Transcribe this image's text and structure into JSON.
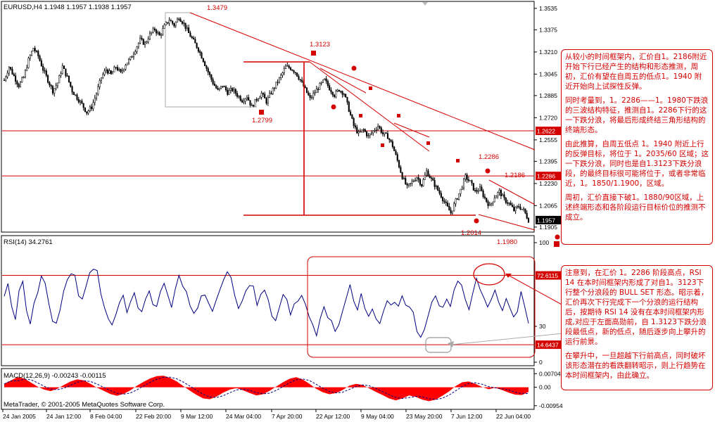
{
  "header": {
    "main": "EURUSD,H4  1.1948 1.1957 1.1938 1.1957",
    "rsi": "RSI(14) 34.2761",
    "macd": "MACD(12,26,9) -0.00243 -0.00115"
  },
  "copyright": "MetaTrader, © 2001-2005 MetaQuotes Software Corp.",
  "chart_data": [
    {
      "type": "candlestick",
      "symbol": "EURUSD",
      "timeframe": "H4",
      "y_ticks": [
        "1.3535",
        "1.3375",
        "1.3210",
        "1.3045",
        "1.2885",
        "1.2720",
        "1.2555",
        "1.2395",
        "1.2230",
        "1.2065",
        "1.1905"
      ],
      "ylim": [
        1.1878,
        1.3571
      ],
      "x_ticks": [
        "24 Jan 2005",
        "24 Jan 12:00",
        "8 Feb 04:00",
        "22 Feb 20:00",
        "9 Mar 12:00",
        "24 Mar 04:00",
        "7 Apr 20:00",
        "22 Apr 12:00",
        "9 May 04:00",
        "23 May 20:00",
        "7 Jun 12:00",
        "22 Jun 04:00"
      ],
      "price_path": [
        [
          0,
          1.3
        ],
        [
          3,
          1.31
        ],
        [
          6,
          1.303
        ],
        [
          9,
          1.296
        ],
        [
          12,
          1.302
        ],
        [
          15,
          1.315
        ],
        [
          18,
          1.324
        ],
        [
          21,
          1.318
        ],
        [
          24,
          1.308
        ],
        [
          27,
          1.3
        ],
        [
          30,
          1.292
        ],
        [
          33,
          1.298
        ],
        [
          36,
          1.31
        ],
        [
          39,
          1.302
        ],
        [
          42,
          1.292
        ],
        [
          45,
          1.287
        ],
        [
          48,
          1.282
        ],
        [
          51,
          1.276
        ],
        [
          54,
          1.28
        ],
        [
          57,
          1.29
        ],
        [
          60,
          1.302
        ],
        [
          63,
          1.308
        ],
        [
          66,
          1.304
        ],
        [
          69,
          1.31
        ],
        [
          72,
          1.305
        ],
        [
          75,
          1.312
        ],
        [
          78,
          1.316
        ],
        [
          81,
          1.323
        ],
        [
          84,
          1.33
        ],
        [
          87,
          1.327
        ],
        [
          90,
          1.334
        ],
        [
          93,
          1.338
        ],
        [
          96,
          1.333
        ],
        [
          99,
          1.34
        ],
        [
          102,
          1.345
        ],
        [
          105,
          1.341
        ],
        [
          108,
          1.347
        ],
        [
          111,
          1.342
        ],
        [
          114,
          1.335
        ],
        [
          117,
          1.329
        ],
        [
          120,
          1.323
        ],
        [
          123,
          1.315
        ],
        [
          126,
          1.306
        ],
        [
          129,
          1.298
        ],
        [
          132,
          1.292
        ],
        [
          135,
          1.296
        ],
        [
          138,
          1.291
        ],
        [
          141,
          1.293
        ],
        [
          144,
          1.289
        ],
        [
          147,
          1.285
        ],
        [
          150,
          1.288
        ],
        [
          153,
          1.28
        ],
        [
          156,
          1.286
        ],
        [
          159,
          1.29
        ],
        [
          162,
          1.284
        ],
        [
          165,
          1.291
        ],
        [
          168,
          1.297
        ],
        [
          171,
          1.303
        ],
        [
          174,
          1.31
        ],
        [
          177,
          1.309
        ],
        [
          180,
          1.306
        ],
        [
          183,
          1.3
        ],
        [
          186,
          1.293
        ],
        [
          189,
          1.286
        ],
        [
          192,
          1.291
        ],
        [
          195,
          1.296
        ],
        [
          198,
          1.3
        ],
        [
          201,
          1.294
        ],
        [
          204,
          1.289
        ],
        [
          207,
          1.293
        ],
        [
          210,
          1.29
        ],
        [
          213,
          1.278
        ],
        [
          216,
          1.266
        ],
        [
          219,
          1.26
        ],
        [
          222,
          1.263
        ],
        [
          225,
          1.258
        ],
        [
          228,
          1.262
        ],
        [
          231,
          1.266
        ],
        [
          234,
          1.26
        ],
        [
          237,
          1.258
        ],
        [
          240,
          1.251
        ],
        [
          243,
          1.24
        ],
        [
          246,
          1.228
        ],
        [
          249,
          1.22
        ],
        [
          252,
          1.224
        ],
        [
          255,
          1.228
        ],
        [
          258,
          1.222
        ],
        [
          261,
          1.232
        ],
        [
          264,
          1.226
        ],
        [
          267,
          1.22
        ],
        [
          270,
          1.214
        ],
        [
          273,
          1.207
        ],
        [
          276,
          1.201
        ],
        [
          279,
          1.21
        ],
        [
          282,
          1.218
        ],
        [
          285,
          1.228
        ],
        [
          288,
          1.224
        ],
        [
          291,
          1.217
        ],
        [
          294,
          1.219
        ],
        [
          297,
          1.212
        ],
        [
          300,
          1.206
        ],
        [
          303,
          1.213
        ],
        [
          306,
          1.217
        ],
        [
          309,
          1.211
        ],
        [
          312,
          1.208
        ],
        [
          315,
          1.203
        ],
        [
          318,
          1.206
        ],
        [
          321,
          1.203
        ],
        [
          324,
          1.1957
        ]
      ],
      "levels": {
        "1.2622": 1.2622,
        "1.2286": 1.2286,
        "1.1957": 1.1957
      },
      "level_labels": [
        "1.2622",
        "1.2286",
        "1.1957"
      ],
      "annotations": [
        "1.3479",
        "1.3123",
        "1.2799",
        "1.2286",
        "1.2186",
        "1.2014",
        "1.1980"
      ]
    },
    {
      "type": "line",
      "name": "RSI(14)",
      "y_ticks": [
        "100",
        "30",
        "0"
      ],
      "ylim": [
        0,
        100
      ],
      "levels": [
        72.6115,
        14.6437
      ],
      "level_labels": [
        "72.6115",
        "14.6437"
      ],
      "values": [
        55,
        63,
        48,
        38,
        62,
        70,
        45,
        33,
        52,
        60,
        70,
        66,
        49,
        36,
        30,
        43,
        58,
        68,
        72,
        70,
        57,
        52,
        65,
        72,
        78,
        74,
        58,
        44,
        36,
        30,
        38,
        50,
        56,
        44,
        53,
        60,
        48,
        40,
        55,
        62,
        50,
        45,
        58,
        66,
        56,
        48,
        63,
        71,
        61,
        58,
        50,
        41,
        46,
        55,
        58,
        48,
        40,
        52,
        63,
        69,
        74,
        68,
        55,
        45,
        50,
        58,
        67,
        62,
        48,
        55,
        60,
        50,
        40,
        35,
        45,
        55,
        50,
        42,
        47,
        52,
        55,
        47,
        40,
        30,
        25,
        35,
        45,
        40,
        34,
        28,
        33,
        45,
        55,
        62,
        50,
        43,
        56,
        44,
        38,
        42,
        36,
        32,
        40,
        50,
        45,
        52,
        46,
        57,
        50,
        45,
        40,
        28,
        22,
        30,
        38,
        48,
        56,
        50,
        44,
        54,
        45,
        60,
        70,
        66,
        52,
        45,
        55,
        72,
        62,
        56,
        44,
        53,
        61,
        53,
        45,
        56,
        48,
        35,
        42,
        60,
        48,
        34
      ]
    },
    {
      "type": "bar",
      "name": "MACD(12,26,9)",
      "y_ticks": [
        "0.00704",
        "0.00",
        "-0.00954"
      ],
      "ylim": [
        -0.0107,
        0.0086
      ],
      "values": [
        0.0018,
        0.0035,
        0.0052,
        0.0046,
        0.0025,
        0.0004,
        -0.0012,
        -0.002,
        -0.0008,
        0.0012,
        0.003,
        0.0041,
        0.0036,
        0.0018,
        -0.0002,
        -0.0018,
        -0.0035,
        -0.0044,
        -0.0034,
        -0.0016,
        0.0008,
        0.0028,
        0.0046,
        0.0058,
        0.006,
        0.0048,
        0.003,
        0.0006,
        -0.0018,
        -0.004,
        -0.0058,
        -0.0062,
        -0.0048,
        -0.0028,
        -0.0012,
        -0.0004,
        -0.0016,
        -0.003,
        -0.0042,
        -0.0036,
        -0.0018,
        0.0004,
        0.0026,
        0.0044,
        0.0052,
        0.004,
        0.0018,
        -0.0008,
        -0.0026,
        -0.0036,
        -0.003,
        -0.0014,
        0.0008,
        0.0018,
        0.0012,
        -0.0006,
        -0.0024,
        -0.004,
        -0.0058,
        -0.0068,
        -0.0058,
        -0.0042,
        -0.005,
        -0.0064,
        -0.0072,
        -0.0064,
        -0.0044,
        -0.0022,
        0.0006,
        0.0026,
        0.003,
        0.0018,
        0.0002,
        -0.001,
        -0.0002,
        -0.0014,
        -0.0028,
        -0.0038,
        -0.004,
        -0.0024
      ]
    }
  ],
  "notes": {
    "main": [
      "从较小的时间框架内，汇价自1。2186附近开始下行已经产生的结构和形态推测，周初，汇价有望在自周五的低点1。1940 附近开始向上试探性反弹。",
      "同时考量到，1。2286——1。1980下跌浪的三波结构特征，推测自1。2286下行的这一下跌分浪，将最后形成终结三角形结构的终端形态。",
      "由此推算，自周五低点 1。1940 附近上行的反弹目标，将位于 1。2035/60 区域；这一下跌分浪，同时也是自1.3123下跌分浪段，的最终目标很可能将位于，或者非常临近，1。1850/1.1900，区域。",
      "周初，汇价直接下破1。1880/90区域，上述终端形态和各阶段运行目标价位的推测不成立。"
    ],
    "rsi": [
      "注意到，在汇价 1。2286 阶段高点，RSI 14 在本时间框架内形成了对自1。3123下行整个分浪段的 BULL SET 形态。昭示着，汇价再次下行完成下一个分浪的运行结构后，按期待 RSI 14 没有在本时间框架内形成,对应于左面高勋前，自 1.3123下跌分浪段最低点，新的低点，随后逐步向上攀升的运行前景。",
      "在攀升中，一旦超越下行前高点，同时破坏该形态潜在的看跌翻转昭示，则上行趋势在本时间框架内，由此确立。"
    ]
  },
  "colors": {
    "bull": "#000000",
    "bear": "#000000",
    "level": "#d40000",
    "rsi": "#000080",
    "macd": "#ff0000",
    "signal": "#000080"
  }
}
